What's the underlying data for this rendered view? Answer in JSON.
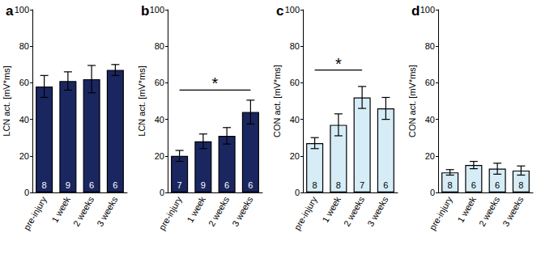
{
  "chart_data": [
    {
      "type": "bar",
      "title": "a",
      "y_label": "LCN act. [mV*ms]",
      "categories": [
        "pre-injury",
        "1 week",
        "2 weeks",
        "3 weeks"
      ],
      "values": [
        58,
        61,
        62,
        67
      ],
      "errors": [
        6,
        5,
        7.5,
        3
      ],
      "n": [
        8,
        9,
        6,
        6
      ],
      "color": "#1a2660",
      "ylim": [
        0,
        100
      ],
      "yticks": [
        0,
        20,
        40,
        60,
        80,
        100
      ],
      "grid": false,
      "annotations": []
    },
    {
      "type": "bar",
      "title": "b",
      "y_label": "LCN act. [mV*ms]",
      "categories": [
        "pre-injury",
        "1 week",
        "2 weeks",
        "3 weeks"
      ],
      "values": [
        20,
        28,
        31,
        44
      ],
      "errors": [
        3,
        4,
        4.5,
        6.5
      ],
      "n": [
        7,
        9,
        6,
        6
      ],
      "color": "#1a2660",
      "ylim": [
        0,
        100
      ],
      "yticks": [
        0,
        20,
        40,
        60,
        80,
        100
      ],
      "grid": false,
      "annotations": [
        {
          "from": "pre-injury",
          "to": "3 weeks",
          "y": 56,
          "text": "*"
        }
      ]
    },
    {
      "type": "bar",
      "title": "c",
      "y_label": "CON act. [mV*ms]",
      "categories": [
        "pre-injury",
        "1 week",
        "2 weeks",
        "3 weeks"
      ],
      "values": [
        27,
        37,
        52,
        46
      ],
      "errors": [
        3,
        6,
        6,
        6
      ],
      "n": [
        8,
        8,
        7,
        6
      ],
      "color": "#d6edf7",
      "ylim": [
        0,
        100
      ],
      "yticks": [
        0,
        20,
        40,
        60,
        80,
        100
      ],
      "grid": false,
      "annotations": [
        {
          "from": "pre-injury",
          "to": "2 weeks",
          "y": 67,
          "text": "*"
        }
      ]
    },
    {
      "type": "bar",
      "title": "d",
      "y_label": "CON act. [mV*ms]",
      "categories": [
        "pre-injury",
        "1 week",
        "2 weeks",
        "3 weeks"
      ],
      "values": [
        11,
        15,
        13,
        12
      ],
      "errors": [
        1.5,
        2,
        3,
        2.5
      ],
      "n": [
        8,
        6,
        6,
        8
      ],
      "color": "#d6edf7",
      "ylim": [
        0,
        100
      ],
      "yticks": [
        0,
        20,
        40,
        60,
        80,
        100
      ],
      "grid": false,
      "annotations": []
    }
  ]
}
